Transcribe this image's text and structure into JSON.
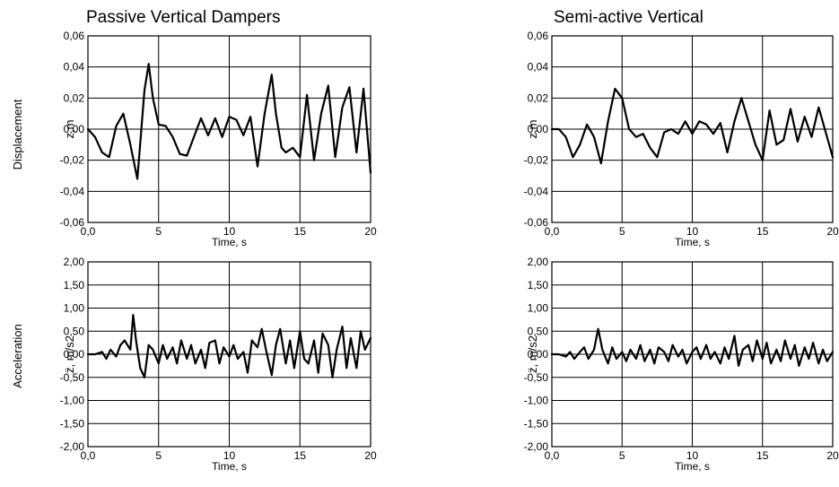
{
  "titles": [
    "Passive Vertical Dampers",
    "Semi-active Vertical"
  ],
  "row_labels": {
    "displacement": "Displacement",
    "acceleration": "Acceleration"
  },
  "chart_data": [
    {
      "type": "line",
      "title": "Passive Vertical Dampers",
      "xlabel": "Time, s",
      "ylabel": "z,m",
      "row_label": "Displacement",
      "xlim": [
        0,
        20
      ],
      "ylim": [
        -0.06,
        0.06
      ],
      "xticks": [
        "0,0",
        "5",
        "10",
        "15",
        "20"
      ],
      "yticks": [
        "0,06",
        "0,04",
        "0,02",
        "0,00",
        "-0,02",
        "-0,04",
        "-0,06"
      ],
      "grid": true,
      "series": [
        {
          "x": [
            0,
            0.5,
            1,
            1.5,
            2,
            2.5,
            3,
            3.5,
            4,
            4.3,
            4.6,
            5,
            5.5,
            6,
            6.5,
            7,
            7.5,
            8,
            8.5,
            9,
            9.5,
            10,
            10.5,
            11,
            11.5,
            12,
            12.5,
            13,
            13.3,
            13.7,
            14,
            14.5,
            15,
            15.5,
            16,
            16.5,
            17,
            17.5,
            18,
            18.5,
            19,
            19.5,
            20
          ],
          "y": [
            0,
            -0.005,
            -0.015,
            -0.018,
            0.002,
            0.01,
            -0.01,
            -0.032,
            0.025,
            0.042,
            0.02,
            0.003,
            0.002,
            -0.005,
            -0.016,
            -0.017,
            -0.005,
            0.007,
            -0.004,
            0.007,
            -0.005,
            0.008,
            0.006,
            -0.004,
            0.008,
            -0.024,
            0.01,
            0.035,
            0.01,
            -0.012,
            -0.015,
            -0.012,
            -0.018,
            0.022,
            -0.02,
            0.01,
            0.028,
            -0.018,
            0.014,
            0.027,
            -0.015,
            0.026,
            -0.028
          ]
        }
      ]
    },
    {
      "type": "line",
      "title": "Semi-active Vertical",
      "xlabel": "Time, s",
      "ylabel": "z,m",
      "xlim": [
        0,
        20
      ],
      "ylim": [
        -0.06,
        0.06
      ],
      "xticks": [
        "0,0",
        "5",
        "10",
        "15",
        "20"
      ],
      "yticks": [
        "0,06",
        "0,04",
        "0,02",
        "0,00",
        "-0,02",
        "-0,04",
        "-0,06"
      ],
      "grid": true,
      "series": [
        {
          "x": [
            0,
            0.5,
            1,
            1.5,
            2,
            2.5,
            3,
            3.5,
            4,
            4.5,
            5,
            5.5,
            6,
            6.5,
            7,
            7.5,
            8,
            8.5,
            9,
            9.5,
            10,
            10.5,
            11,
            11.5,
            12,
            12.5,
            13,
            13.5,
            14,
            14.5,
            15,
            15.5,
            16,
            16.5,
            17,
            17.5,
            18,
            18.5,
            19,
            19.5,
            20
          ],
          "y": [
            0,
            0,
            -0.005,
            -0.018,
            -0.01,
            0.003,
            -0.005,
            -0.022,
            0.005,
            0.026,
            0.02,
            0,
            -0.005,
            -0.003,
            -0.012,
            -0.018,
            -0.002,
            0,
            -0.003,
            0.005,
            -0.003,
            0.005,
            0.003,
            -0.003,
            0.004,
            -0.015,
            0.005,
            0.02,
            0.005,
            -0.01,
            -0.02,
            0.012,
            -0.01,
            -0.007,
            0.013,
            -0.008,
            0.008,
            -0.005,
            0.014,
            -0.002,
            -0.018
          ]
        }
      ]
    },
    {
      "type": "line",
      "title": "",
      "xlabel": "Time, s",
      "ylabel": "z̈, m/s2",
      "row_label": "Acceleration",
      "xlim": [
        0,
        20
      ],
      "ylim": [
        -2.0,
        2.0
      ],
      "xticks": [
        "0,0",
        "5",
        "10",
        "15",
        "20"
      ],
      "yticks": [
        "2,00",
        "1,50",
        "1,00",
        "0,50",
        "0,00",
        "-0,50",
        "-1,00",
        "-1,50",
        "-2,00"
      ],
      "grid": true,
      "series": [
        {
          "x": [
            0,
            0.5,
            1,
            1.3,
            1.6,
            2,
            2.3,
            2.6,
            3,
            3.2,
            3.4,
            3.7,
            4,
            4.3,
            4.6,
            5,
            5.3,
            5.6,
            6,
            6.3,
            6.6,
            7,
            7.3,
            7.6,
            8,
            8.3,
            8.6,
            9,
            9.3,
            9.6,
            10,
            10.3,
            10.6,
            11,
            11.3,
            11.6,
            12,
            12.3,
            12.6,
            13,
            13.3,
            13.6,
            14,
            14.3,
            14.6,
            15,
            15.3,
            15.6,
            16,
            16.3,
            16.6,
            17,
            17.3,
            17.6,
            18,
            18.3,
            18.6,
            19,
            19.3,
            19.6,
            20
          ],
          "y": [
            0,
            0,
            0.05,
            -0.1,
            0.1,
            -0.05,
            0.2,
            0.3,
            0.1,
            0.85,
            0.3,
            -0.3,
            -0.5,
            0.2,
            0.1,
            -0.2,
            0.2,
            -0.1,
            0.15,
            -0.2,
            0.3,
            -0.1,
            0.2,
            -0.2,
            0.1,
            -0.3,
            0.25,
            0.3,
            -0.2,
            0.15,
            -0.05,
            0.2,
            -0.1,
            0.05,
            -0.4,
            0.3,
            0.15,
            0.55,
            0.1,
            -0.45,
            0.2,
            0.55,
            -0.2,
            0.3,
            -0.3,
            0.5,
            -0.1,
            -0.2,
            0.3,
            -0.4,
            0.45,
            0.2,
            -0.5,
            0.1,
            0.6,
            -0.3,
            0.35,
            -0.3,
            0.5,
            0.1,
            0.35
          ]
        }
      ]
    },
    {
      "type": "line",
      "title": "",
      "xlabel": "Time, s",
      "ylabel": "z̈, m/s2",
      "xlim": [
        0,
        20
      ],
      "ylim": [
        -2.0,
        2.0
      ],
      "xticks": [
        "0,0",
        "5",
        "10",
        "15",
        "20"
      ],
      "yticks": [
        "2,00",
        "1,50",
        "1,00",
        "0,50",
        "0,00",
        "-0,50",
        "-1,00",
        "-1,50",
        "-2,00"
      ],
      "grid": true,
      "series": [
        {
          "x": [
            0,
            0.5,
            1,
            1.3,
            1.6,
            2,
            2.3,
            2.6,
            3,
            3.3,
            3.6,
            4,
            4.3,
            4.6,
            5,
            5.3,
            5.6,
            6,
            6.3,
            6.6,
            7,
            7.3,
            7.6,
            8,
            8.3,
            8.6,
            9,
            9.3,
            9.6,
            10,
            10.3,
            10.6,
            11,
            11.3,
            11.6,
            12,
            12.3,
            12.6,
            13,
            13.3,
            13.6,
            14,
            14.3,
            14.6,
            15,
            15.3,
            15.6,
            16,
            16.3,
            16.6,
            17,
            17.3,
            17.6,
            18,
            18.3,
            18.6,
            19,
            19.3,
            19.6,
            20
          ],
          "y": [
            0,
            0,
            -0.05,
            0.05,
            -0.1,
            0.05,
            0.15,
            -0.1,
            0.1,
            0.55,
            0.1,
            -0.2,
            0.15,
            -0.1,
            0.05,
            -0.15,
            0.1,
            -0.1,
            0.2,
            -0.15,
            0.1,
            -0.2,
            0.15,
            0.05,
            -0.15,
            0.2,
            -0.05,
            0.1,
            -0.2,
            0.05,
            0.15,
            -0.1,
            0.2,
            -0.1,
            0.05,
            -0.2,
            0.15,
            -0.1,
            0.4,
            -0.25,
            0.1,
            0.2,
            -0.15,
            0.3,
            -0.1,
            0.25,
            -0.2,
            0.1,
            -0.15,
            0.3,
            -0.1,
            0.2,
            -0.25,
            0.15,
            -0.1,
            0.25,
            -0.2,
            0.1,
            -0.15,
            0.05
          ]
        }
      ]
    }
  ]
}
